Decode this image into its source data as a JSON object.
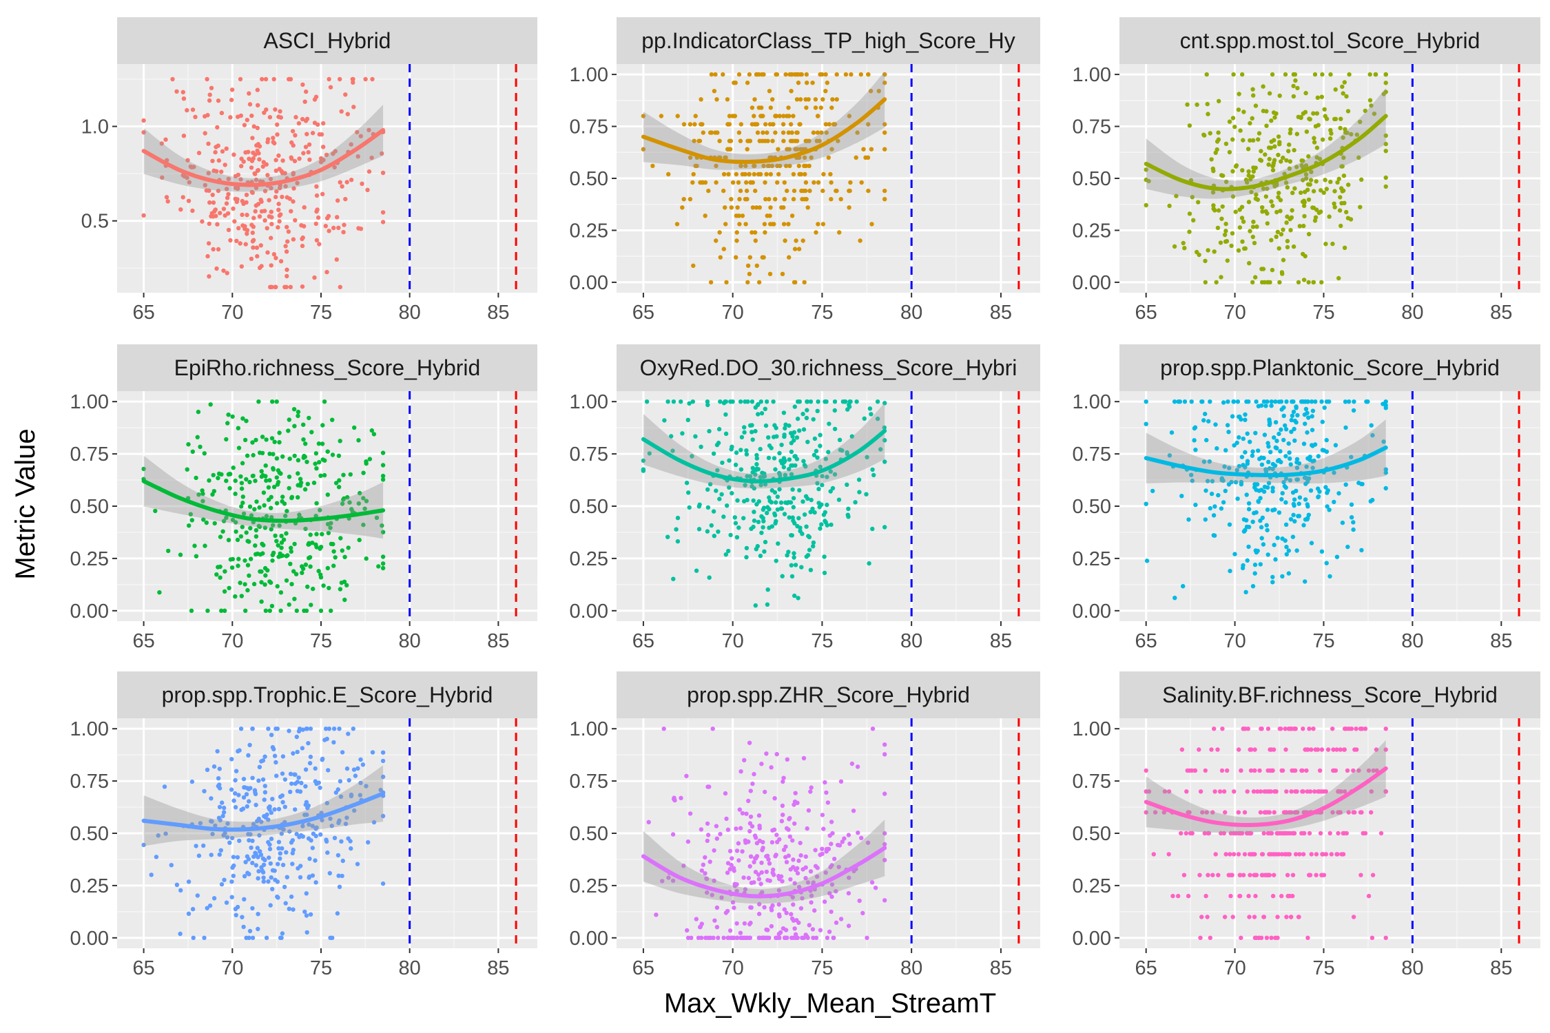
{
  "chart_data": {
    "type": "scatter",
    "layout": "3x3 facet grid (ggplot2 facet_wrap)",
    "xlabel": "Max_Wkly_Mean_StreamT",
    "ylabel": "Metric Value",
    "xlim": [
      63.5,
      87.2
    ],
    "xticks": [
      65,
      70,
      75,
      80,
      85
    ],
    "grid": true,
    "background": "#EBEBEB",
    "strip_color": "#D9D9D9",
    "reference_lines": [
      {
        "x": 80,
        "color": "#0000FF",
        "style": "dashed"
      },
      {
        "x": 86,
        "color": "#FF0000",
        "style": "dashed"
      }
    ],
    "smooth_range": [
      65,
      78.5
    ],
    "facets": [
      {
        "title": "ASCI_Hybrid",
        "color": "#F8766D",
        "ylim": [
          0.12,
          1.33
        ],
        "yticks": [
          0.5,
          1.0
        ],
        "yticklabels": [
          "0.5",
          "1.0"
        ],
        "smooth": {
          "x": [
            65,
            67,
            69,
            71,
            73,
            75,
            77,
            78.5
          ],
          "y": [
            0.87,
            0.77,
            0.71,
            0.69,
            0.71,
            0.77,
            0.88,
            0.98
          ]
        },
        "scatter": {
          "n": 380,
          "xmean": 72,
          "xsd": 2.8,
          "ymin": 0.15,
          "ymax": 1.25,
          "step": 0
        }
      },
      {
        "title": "pp.IndicatorClass_TP_high_Score_Hy",
        "color": "#D39200",
        "ylim": [
          -0.05,
          1.05
        ],
        "yticks": [
          0,
          0.25,
          0.5,
          0.75,
          1.0
        ],
        "yticklabels": [
          "0.00",
          "0.25",
          "0.50",
          "0.75",
          "1.00"
        ],
        "smooth": {
          "x": [
            65,
            67,
            69,
            71,
            73,
            75,
            77,
            78.5
          ],
          "y": [
            0.7,
            0.64,
            0.59,
            0.58,
            0.6,
            0.66,
            0.77,
            0.88
          ]
        },
        "scatter": {
          "n": 380,
          "xmean": 72.5,
          "xsd": 2.8,
          "ymin": 0,
          "ymax": 1,
          "step": 0.04
        }
      },
      {
        "title": "cnt.spp.most.tol_Score_Hybrid",
        "color": "#93AA00",
        "ylim": [
          -0.05,
          1.05
        ],
        "yticks": [
          0,
          0.25,
          0.5,
          0.75,
          1.0
        ],
        "yticklabels": [
          "0.00",
          "0.25",
          "0.50",
          "0.75",
          "1.00"
        ],
        "smooth": {
          "x": [
            65,
            67,
            69,
            71,
            73,
            75,
            77,
            78.5
          ],
          "y": [
            0.57,
            0.49,
            0.45,
            0.46,
            0.51,
            0.58,
            0.69,
            0.8
          ]
        },
        "scatter": {
          "n": 380,
          "xmean": 72.5,
          "xsd": 2.8,
          "ymin": 0,
          "ymax": 1,
          "step": 0
        }
      },
      {
        "title": "EpiRho.richness_Score_Hybrid",
        "color": "#00BA38",
        "ylim": [
          -0.05,
          1.05
        ],
        "yticks": [
          0,
          0.25,
          0.5,
          0.75,
          1.0
        ],
        "yticklabels": [
          "0.00",
          "0.25",
          "0.50",
          "0.75",
          "1.00"
        ],
        "smooth": {
          "x": [
            65,
            67,
            69,
            71,
            73,
            75,
            77,
            78.5
          ],
          "y": [
            0.62,
            0.54,
            0.48,
            0.44,
            0.43,
            0.44,
            0.46,
            0.48
          ]
        },
        "scatter": {
          "n": 380,
          "xmean": 72.5,
          "xsd": 2.8,
          "ymin": 0,
          "ymax": 1,
          "step": 0
        }
      },
      {
        "title": "OxyRed.DO_30.richness_Score_Hybri",
        "color": "#00C19F",
        "ylim": [
          -0.05,
          1.05
        ],
        "yticks": [
          0,
          0.25,
          0.5,
          0.75,
          1.0
        ],
        "yticklabels": [
          "0.00",
          "0.25",
          "0.50",
          "0.75",
          "1.00"
        ],
        "smooth": {
          "x": [
            65,
            67,
            69,
            71,
            73,
            75,
            77,
            78.5
          ],
          "y": [
            0.82,
            0.72,
            0.65,
            0.62,
            0.63,
            0.67,
            0.76,
            0.86
          ]
        },
        "scatter": {
          "n": 380,
          "xmean": 72.5,
          "xsd": 2.8,
          "ymin": 0,
          "ymax": 1,
          "step": 0
        }
      },
      {
        "title": "prop.spp.Planktonic_Score_Hybrid",
        "color": "#00B9E3",
        "ylim": [
          -0.05,
          1.05
        ],
        "yticks": [
          0,
          0.25,
          0.5,
          0.75,
          1.0
        ],
        "yticklabels": [
          "0.00",
          "0.25",
          "0.50",
          "0.75",
          "1.00"
        ],
        "smooth": {
          "x": [
            65,
            67,
            69,
            71,
            73,
            75,
            77,
            78.5
          ],
          "y": [
            0.73,
            0.69,
            0.66,
            0.65,
            0.65,
            0.67,
            0.72,
            0.78
          ]
        },
        "scatter": {
          "n": 380,
          "xmean": 72.5,
          "xsd": 2.8,
          "ymin": 0,
          "ymax": 1,
          "step": 0
        }
      },
      {
        "title": "prop.spp.Trophic.E_Score_Hybrid",
        "color": "#619CFF",
        "ylim": [
          -0.05,
          1.05
        ],
        "yticks": [
          0,
          0.25,
          0.5,
          0.75,
          1.0
        ],
        "yticklabels": [
          "0.00",
          "0.25",
          "0.50",
          "0.75",
          "1.00"
        ],
        "smooth": {
          "x": [
            65,
            67,
            69,
            71,
            73,
            75,
            77,
            78.5
          ],
          "y": [
            0.56,
            0.54,
            0.52,
            0.52,
            0.54,
            0.58,
            0.64,
            0.69
          ]
        },
        "scatter": {
          "n": 380,
          "xmean": 72.5,
          "xsd": 2.8,
          "ymin": 0,
          "ymax": 1,
          "step": 0
        }
      },
      {
        "title": "prop.spp.ZHR_Score_Hybrid",
        "color": "#DB72FB",
        "ylim": [
          -0.05,
          1.05
        ],
        "yticks": [
          0,
          0.25,
          0.5,
          0.75,
          1.0
        ],
        "yticklabels": [
          "0.00",
          "0.25",
          "0.50",
          "0.75",
          "1.00"
        ],
        "smooth": {
          "x": [
            65,
            67,
            69,
            71,
            73,
            75,
            77,
            78.5
          ],
          "y": [
            0.39,
            0.29,
            0.23,
            0.2,
            0.21,
            0.26,
            0.35,
            0.43
          ]
        },
        "scatter": {
          "n": 380,
          "xmean": 72.5,
          "xsd": 2.8,
          "ymin": 0,
          "ymax": 1,
          "step": 0
        }
      },
      {
        "title": "Salinity.BF.richness_Score_Hybrid",
        "color": "#FF61C3",
        "ylim": [
          -0.05,
          1.05
        ],
        "yticks": [
          0,
          0.25,
          0.5,
          0.75,
          1.0
        ],
        "yticklabels": [
          "0.00",
          "0.25",
          "0.50",
          "0.75",
          "1.00"
        ],
        "smooth": {
          "x": [
            65,
            67,
            69,
            71,
            73,
            75,
            77,
            78.5
          ],
          "y": [
            0.65,
            0.59,
            0.55,
            0.54,
            0.56,
            0.62,
            0.72,
            0.81
          ]
        },
        "scatter": {
          "n": 380,
          "xmean": 72.5,
          "xsd": 2.8,
          "ymin": 0,
          "ymax": 1,
          "step": 0.1
        }
      }
    ]
  }
}
